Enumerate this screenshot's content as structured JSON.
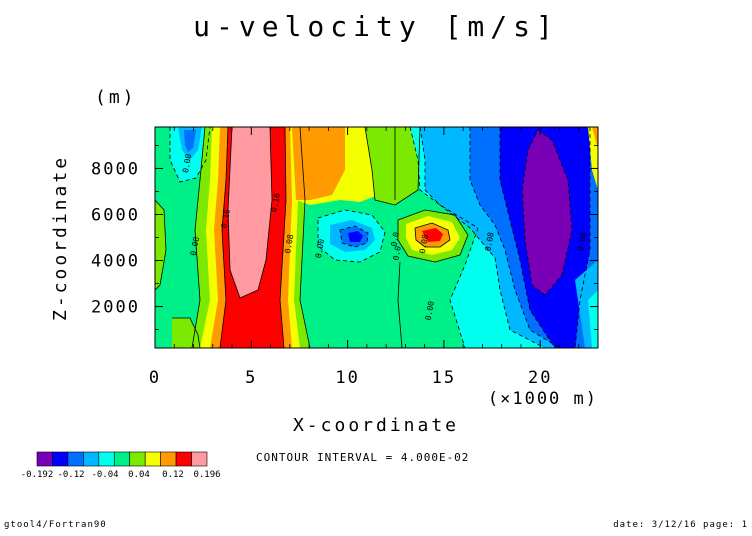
{
  "title": "u-velocity [m/s]",
  "footer": {
    "left": "gtool4/Fortran90",
    "right": "date: 3/12/16 page: 1"
  },
  "chart_data": {
    "type": "heatmap",
    "title": "u-velocity [m/s]",
    "xlabel": "X-coordinate",
    "x_unit": "(×1000 m)",
    "ylabel": "Z-coordinate",
    "y_unit": "(m)",
    "xlim": [
      0,
      23
    ],
    "ylim": [
      200,
      9800
    ],
    "x_ticks": [
      0,
      5,
      10,
      15,
      20
    ],
    "y_ticks": [
      2000,
      4000,
      6000,
      8000
    ],
    "contour_interval_text": "CONTOUR INTERVAL = 4.000E-02",
    "contour_labels": [
      {
        "text": "0.00",
        "x": 1.8,
        "z": 8200
      },
      {
        "text": "0.16",
        "x": 6.4,
        "z": 6500
      },
      {
        "text": "0.16",
        "x": 3.8,
        "z": 5800
      },
      {
        "text": "0.08",
        "x": 2.2,
        "z": 4600
      },
      {
        "text": "0.08",
        "x": 7.1,
        "z": 4700
      },
      {
        "text": "0.00",
        "x": 8.7,
        "z": 4500
      },
      {
        "text": "0.0",
        "x": 12.6,
        "z": 4900
      },
      {
        "text": "0.08",
        "x": 14.1,
        "z": 4700
      },
      {
        "text": "0.0",
        "x": 12.7,
        "z": 4300
      },
      {
        "text": "0.00",
        "x": 14.4,
        "z": 1800
      },
      {
        "text": "0.08",
        "x": 17.5,
        "z": 4800
      },
      {
        "text": "0.08",
        "x": 22.3,
        "z": 4800
      }
    ],
    "colorbar": {
      "levels": [
        -0.192,
        -0.16,
        -0.12,
        -0.08,
        -0.04,
        0.0,
        0.04,
        0.08,
        0.12,
        0.16,
        0.196
      ],
      "labels": [
        "-0.192",
        "-0.12",
        "-0.04",
        "0.04",
        "0.12",
        "0.196"
      ],
      "colors": [
        "#7a00b8",
        "#0000ff",
        "#0070ff",
        "#00b8ff",
        "#00ffee",
        "#00f088",
        "#7cea00",
        "#f4ff00",
        "#ff9a00",
        "#ff0000",
        "#ff9aa0"
      ]
    }
  }
}
